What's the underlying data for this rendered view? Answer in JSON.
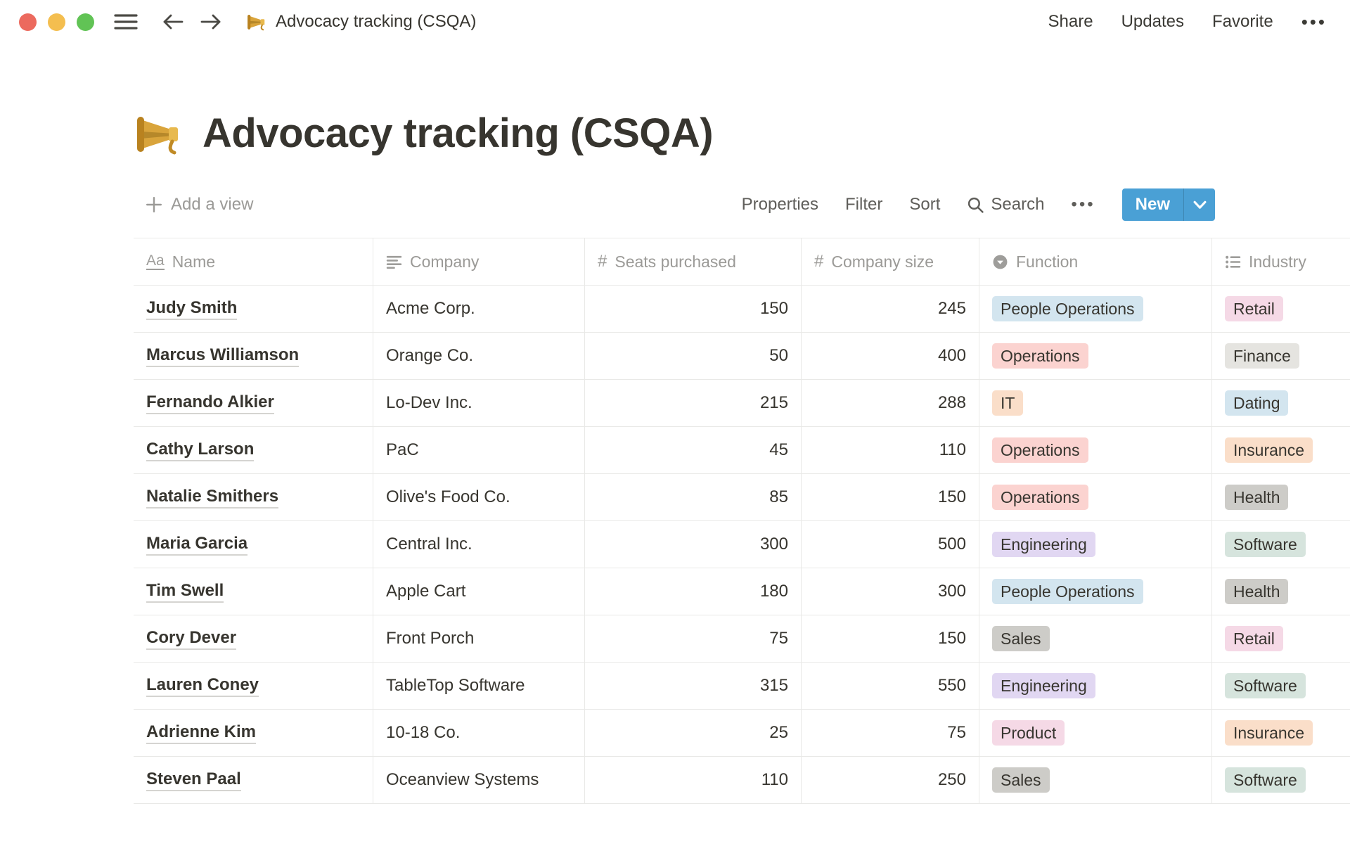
{
  "topbar": {
    "page_title": "Advocacy tracking (CSQA)",
    "actions": {
      "share": "Share",
      "updates": "Updates",
      "favorite": "Favorite",
      "more": "•••"
    }
  },
  "page": {
    "icon": "megaphone-icon",
    "title": "Advocacy tracking (CSQA)"
  },
  "toolbar": {
    "add_view_label": "Add a view",
    "properties_label": "Properties",
    "filter_label": "Filter",
    "sort_label": "Sort",
    "search_label": "Search",
    "more_label": "•••",
    "new_label": "New"
  },
  "table": {
    "columns": [
      {
        "label": "Name",
        "icon": "title-icon"
      },
      {
        "label": "Company",
        "icon": "text-icon"
      },
      {
        "label": "Seats purchased",
        "icon": "number-icon"
      },
      {
        "label": "Company size",
        "icon": "number-icon"
      },
      {
        "label": "Function",
        "icon": "select-icon"
      },
      {
        "label": "Industry",
        "icon": "multi-select-icon"
      }
    ],
    "rows": [
      {
        "name": "Judy Smith",
        "company": "Acme Corp.",
        "seats": "150",
        "size": "245",
        "function": "People Operations",
        "function_color": "blue",
        "industry": "Retail",
        "industry_color": "pink"
      },
      {
        "name": "Marcus Williamson",
        "company": "Orange Co.",
        "seats": "50",
        "size": "400",
        "function": "Operations",
        "function_color": "red",
        "industry": "Finance",
        "industry_color": "lightgray"
      },
      {
        "name": "Fernando Alkier",
        "company": "Lo-Dev Inc.",
        "seats": "215",
        "size": "288",
        "function": "IT",
        "function_color": "orange",
        "industry": "Dating",
        "industry_color": "blue"
      },
      {
        "name": "Cathy Larson",
        "company": "PaC",
        "seats": "45",
        "size": "110",
        "function": "Operations",
        "function_color": "red",
        "industry": "Insurance",
        "industry_color": "orange"
      },
      {
        "name": "Natalie Smithers",
        "company": "Olive's Food Co.",
        "seats": "85",
        "size": "150",
        "function": "Operations",
        "function_color": "red",
        "industry": "Health",
        "industry_color": "gray"
      },
      {
        "name": "Maria Garcia",
        "company": "Central Inc.",
        "seats": "300",
        "size": "500",
        "function": "Engineering",
        "function_color": "purple",
        "industry": "Software",
        "industry_color": "green"
      },
      {
        "name": "Tim Swell",
        "company": "Apple Cart",
        "seats": "180",
        "size": "300",
        "function": "People Operations",
        "function_color": "blue",
        "industry": "Health",
        "industry_color": "gray"
      },
      {
        "name": "Cory Dever",
        "company": "Front Porch",
        "seats": "75",
        "size": "150",
        "function": "Sales",
        "function_color": "gray",
        "industry": "Retail",
        "industry_color": "pink"
      },
      {
        "name": "Lauren Coney",
        "company": "TableTop Software",
        "seats": "315",
        "size": "550",
        "function": "Engineering",
        "function_color": "purple",
        "industry": "Software",
        "industry_color": "green"
      },
      {
        "name": "Adrienne Kim",
        "company": "10-18 Co.",
        "seats": "25",
        "size": "75",
        "function": "Product",
        "function_color": "pink",
        "industry": "Insurance",
        "industry_color": "orange"
      },
      {
        "name": "Steven Paal",
        "company": "Oceanview Systems",
        "seats": "110",
        "size": "250",
        "function": "Sales",
        "function_color": "gray",
        "industry": "Software",
        "industry_color": "green"
      }
    ]
  },
  "colors": {
    "accent-blue": "#4AA0D5",
    "tag-blue": "#D3E5EF",
    "tag-red": "#FBD3D0",
    "tag-orange": "#FADEC9",
    "tag-purple": "#E1D7F2",
    "tag-green": "#D6E4DD",
    "tag-pink": "#F5D9E6",
    "tag-gray": "#CDCCC8",
    "tag-lightgray": "#E5E4E0"
  }
}
